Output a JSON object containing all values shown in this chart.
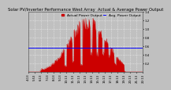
{
  "title": "Solar PV/Inverter Performance West Array  Actual & Average Power Output",
  "bg_color": "#c0c0c0",
  "plot_bg": "#c0c0c0",
  "bar_color": "#cc0000",
  "avg_line_color": "#0000ff",
  "avg_value": 0.55,
  "ylim": [
    0,
    1.4
  ],
  "ytick_values": [
    0.2,
    0.4,
    0.6,
    0.8,
    1.0,
    1.2,
    1.4
  ],
  "ytick_labels": [
    "0.2",
    "0.4",
    "0.6",
    "0.8",
    "1.0",
    "1.2",
    "1.4"
  ],
  "n_points": 288,
  "title_fontsize": 3.8,
  "legend_fontsize": 3.2,
  "tick_fontsize": 2.8,
  "xtick_labels": [
    "4:13",
    "5:53",
    "6:13",
    "7:13",
    "8:13",
    "9:13",
    "10:13",
    "11:13",
    "12:13",
    "13:13",
    "14:13",
    "15:13",
    "16:13",
    "17:13",
    "18:13",
    "19:13",
    "20:13",
    "21:13",
    "22:13"
  ],
  "legend_actual": "Actual Power Output",
  "legend_avg": "Avg. Power Output"
}
